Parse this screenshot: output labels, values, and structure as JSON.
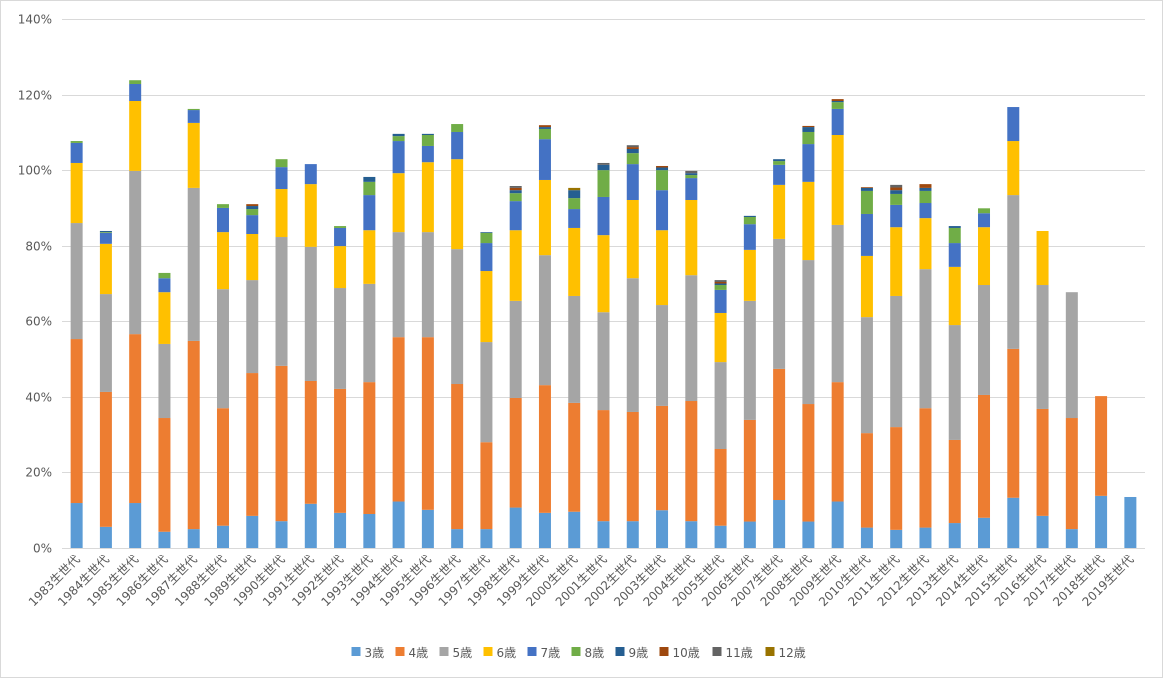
{
  "chart_data": {
    "type": "bar",
    "stacked": true,
    "title": "",
    "xlabel": "",
    "ylabel": "",
    "ylim": [
      0,
      140
    ],
    "y_ticks": [
      "0%",
      "20%",
      "40%",
      "60%",
      "80%",
      "100%",
      "120%",
      "140%"
    ],
    "y_tick_values": [
      0,
      20,
      40,
      60,
      80,
      100,
      120,
      140
    ],
    "grid": true,
    "legend_position": "bottom",
    "categories": [
      "1983生世代",
      "1984生世代",
      "1985生世代",
      "1986生世代",
      "1987生世代",
      "1988生世代",
      "1989生世代",
      "1990生世代",
      "1991生世代",
      "1992生世代",
      "1993生世代",
      "1994生世代",
      "1995生世代",
      "1996生世代",
      "1997生世代",
      "1998生世代",
      "1999生世代",
      "2000生世代",
      "2001生世代",
      "2002生世代",
      "2003生世代",
      "2004生世代",
      "2005生世代",
      "2006生世代",
      "2007生世代",
      "2008生世代",
      "2009生世代",
      "2010生世代",
      "2011生世代",
      "2012生世代",
      "2013生世代",
      "2014生世代",
      "2015生世代",
      "2016生世代",
      "2017生世代",
      "2018生世代",
      "2019生世代"
    ],
    "series": [
      {
        "name": "3歳",
        "color": "#5B9BD5",
        "values": [
          11.9,
          5.6,
          11.9,
          4.3,
          5,
          5.9,
          8.5,
          7.1,
          11.7,
          9.3,
          9,
          12.3,
          10.1,
          5,
          5,
          10.7,
          9.3,
          9.6,
          7.1,
          7.1,
          10,
          7.1,
          5.9,
          7,
          12.7,
          7,
          12.3,
          5.4,
          4.8,
          5.4,
          6.6,
          8,
          13.3,
          8.5,
          5,
          13.8,
          13.5
        ]
      },
      {
        "name": "4歳",
        "color": "#ED7D31",
        "values": [
          43.4,
          35.7,
          44.7,
          30.1,
          49.8,
          31.1,
          37.8,
          41.1,
          32.5,
          32.8,
          34.9,
          43.5,
          45.7,
          38.4,
          23,
          29,
          33.8,
          28.8,
          29.4,
          28.9,
          27.6,
          31.8,
          20.3,
          26.9,
          34.7,
          31.1,
          31.6,
          25,
          27.2,
          31.6,
          22,
          32.5,
          39.4,
          28.3,
          29.4,
          26.4,
          0
        ]
      },
      {
        "name": "5歳",
        "color": "#A5A5A5",
        "values": [
          30.7,
          25.9,
          43.2,
          19.6,
          40.5,
          31.5,
          24.6,
          34.1,
          35.5,
          26.7,
          26,
          27.8,
          27.8,
          35.7,
          26.5,
          25.7,
          34.4,
          28.3,
          25.9,
          35.4,
          26.7,
          33.3,
          23,
          31.5,
          34.4,
          38.1,
          41.6,
          30.7,
          34.7,
          36.8,
          30.4,
          29.1,
          40.7,
          32.8,
          33.3,
          0,
          0
        ]
      },
      {
        "name": "6歳",
        "color": "#FFC000",
        "values": [
          15.9,
          13.3,
          18.5,
          13.7,
          17.2,
          15.1,
          12.2,
          12.7,
          16.6,
          11.1,
          14.2,
          15.6,
          18.5,
          23.8,
          18.8,
          18.7,
          19.9,
          18,
          20.4,
          20.7,
          19.8,
          19.9,
          13,
          13.5,
          14.3,
          20.7,
          23.8,
          16.2,
          18.2,
          13.5,
          15.4,
          15.3,
          14.3,
          14.3,
          0,
          0,
          0
        ]
      },
      {
        "name": "7歳",
        "color": "#4472C4",
        "values": [
          5.3,
          2.9,
          4.5,
          3.7,
          3.4,
          6.4,
          5,
          5.8,
          5.3,
          4.8,
          9.3,
          8.5,
          4.3,
          7.2,
          7.4,
          7.7,
          10.8,
          5,
          10.1,
          9.5,
          10.6,
          5.8,
          6.1,
          6.8,
          5.3,
          10,
          6.9,
          11.1,
          5.9,
          4,
          6.3,
          3.7,
          9,
          0,
          0,
          0,
          0
        ]
      },
      {
        "name": "8歳",
        "color": "#70AD47",
        "values": [
          0.5,
          0.2,
          1,
          1.4,
          0.3,
          1,
          1.6,
          2.1,
          0,
          0.5,
          3.5,
          1.3,
          2.9,
          2.1,
          2.7,
          2.1,
          2.7,
          2.9,
          7.1,
          2.9,
          5.3,
          0.8,
          1.3,
          1.9,
          1,
          3.2,
          1.8,
          6.1,
          2.9,
          3.2,
          4,
          1.3,
          0,
          0,
          0,
          0,
          0
        ]
      },
      {
        "name": "9歳",
        "color": "#255E91",
        "values": [
          0,
          0.3,
          0,
          0,
          0,
          0,
          0.8,
          0,
          0,
          0,
          1.3,
          0.6,
          0.3,
          0,
          0.2,
          0.8,
          0.5,
          2.1,
          1.4,
          1.1,
          0.7,
          0.5,
          0.4,
          0.3,
          0.5,
          1.3,
          0.3,
          0.8,
          1,
          0.8,
          0.5,
          0,
          0,
          0,
          0,
          0,
          0
        ]
      },
      {
        "name": "10歳",
        "color": "#9E480E",
        "values": [
          0,
          0,
          0,
          0,
          0,
          0,
          0.5,
          0,
          0,
          0,
          0,
          0,
          0,
          0,
          0,
          0.6,
          0.5,
          0,
          0,
          0.5,
          0.4,
          0,
          0.4,
          0,
          0,
          0.3,
          0.5,
          0.2,
          0.7,
          1,
          0,
          0,
          0,
          0,
          0,
          0,
          0
        ]
      },
      {
        "name": "11歳",
        "color": "#636363",
        "values": [
          0,
          0,
          0,
          0,
          0,
          0,
          0,
          0,
          0,
          0,
          0,
          0,
          0,
          0,
          0,
          0.5,
          0,
          0,
          0.5,
          0.5,
          0,
          0.6,
          0.5,
          0,
          0,
          0,
          0,
          0,
          0.7,
          0,
          0,
          0,
          0,
          0,
          0,
          0,
          0
        ]
      },
      {
        "name": "12歳",
        "color": "#997300",
        "values": [
          0,
          0,
          0,
          0,
          0,
          0,
          0,
          0,
          0,
          0,
          0,
          0,
          0,
          0,
          0,
          0,
          0,
          0.6,
          0,
          0,
          0,
          0,
          0,
          0,
          0,
          0,
          0,
          0,
          0,
          0,
          0,
          0,
          0,
          0,
          0,
          0,
          0
        ]
      }
    ]
  }
}
